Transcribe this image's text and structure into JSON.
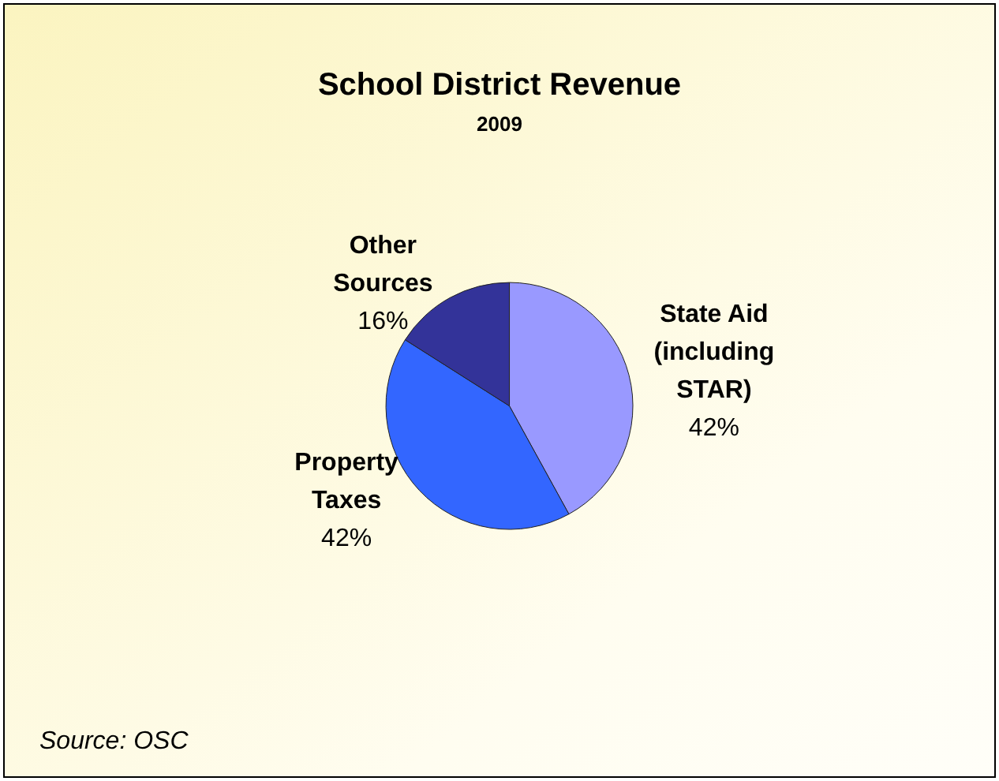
{
  "chart_data": {
    "type": "pie",
    "title": "School District Revenue",
    "subtitle": "2009",
    "categories": [
      "State Aid (including STAR)",
      "Property Taxes",
      "Other Sources"
    ],
    "values": [
      42,
      42,
      16
    ],
    "colors": [
      "#9999ff",
      "#3366ff",
      "#333399"
    ],
    "value_labels": [
      "42%",
      "42%",
      "16%"
    ],
    "annotations": [
      "Source: OSC"
    ]
  }
}
